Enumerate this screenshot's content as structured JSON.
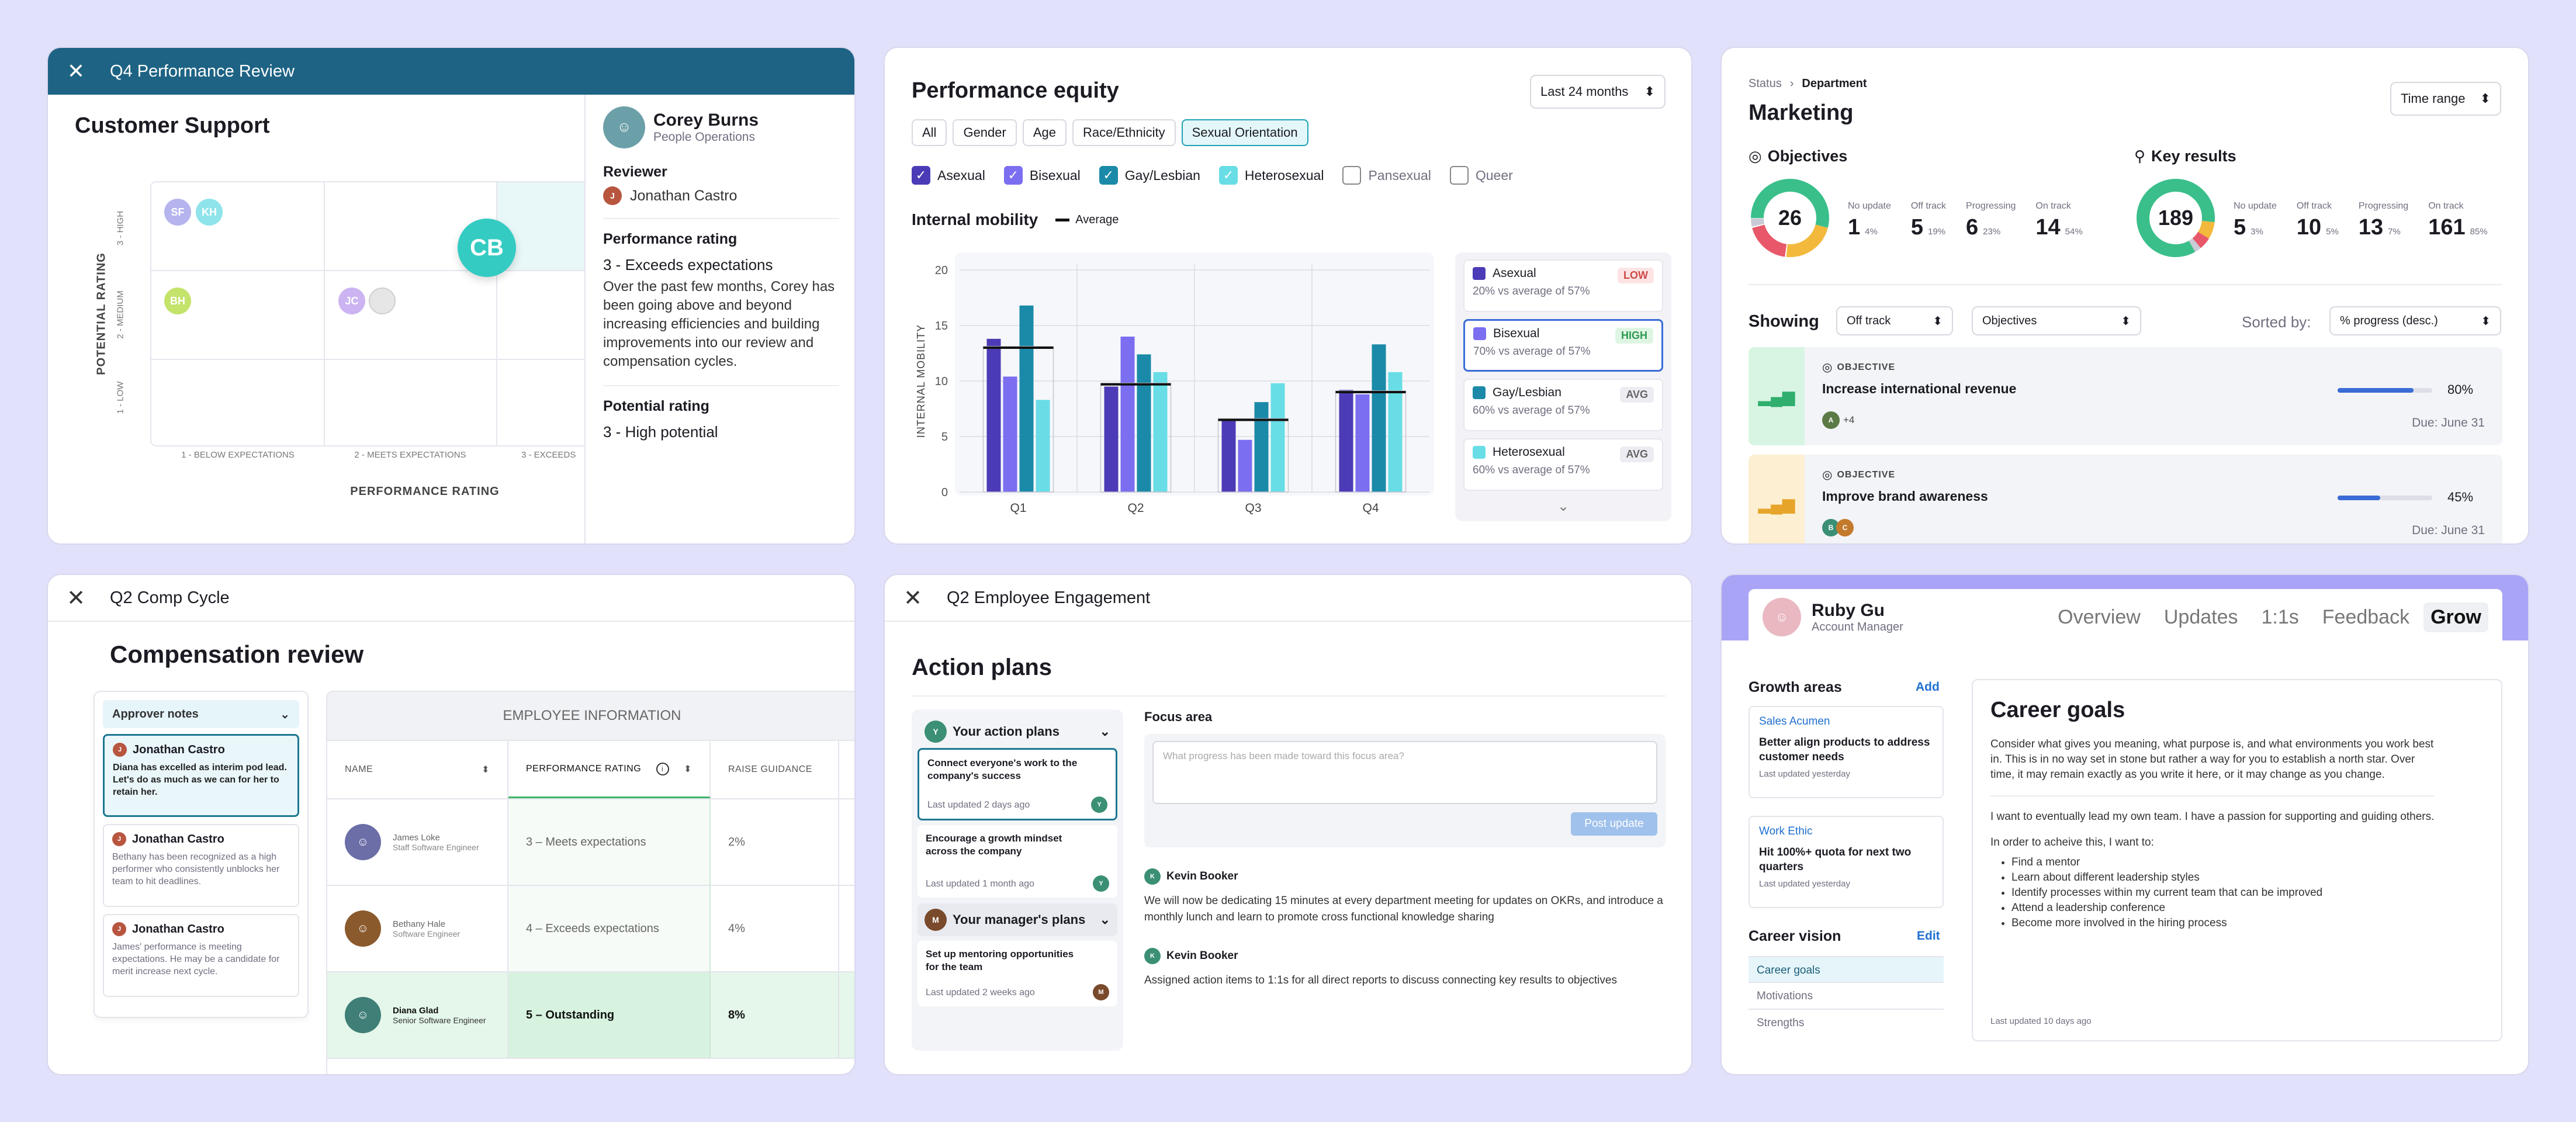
{
  "perf_review": {
    "title": "Q4 Performance Review",
    "dept": "Customer Support",
    "y_axis": "POTENTIAL RATING",
    "x_axis": "PERFORMANCE RATING",
    "y_ticks": [
      "3 - HIGH",
      "2 - MEDIUM",
      "1 - LOW"
    ],
    "x_ticks": [
      "1 - BELOW EXPECTATIONS",
      "2 - MEETS EXPECTATIONS",
      "3 - EXCEEDS"
    ],
    "bubbles": [
      "SF",
      "KH",
      "BH",
      "JC",
      "CB"
    ],
    "person": {
      "name": "Corey Burns",
      "role": "People Operations"
    },
    "reviewer_label": "Reviewer",
    "reviewer_name": "Jonathan Castro",
    "perf_label": "Performance rating",
    "perf_value": "3 - Exceeds expectations",
    "perf_text": "Over the past few months, Corey has been going above and beyond increasing efficiencies and building improvements into our review and compensation cycles.",
    "pot_label": "Potential rating",
    "pot_value": "3 - High potential"
  },
  "equity": {
    "title": "Performance equity",
    "range": "Last 24 months",
    "filters": [
      "All",
      "Gender",
      "Age",
      "Race/Ethnicity",
      "Sexual Orientation"
    ],
    "checks": [
      "Asexual",
      "Bisexual",
      "Gay/Lesbian",
      "Heterosexual",
      "Pansexual",
      "Queer"
    ],
    "check_colors": [
      "#4b3bb6",
      "#7b6ef0",
      "#1b8aa8",
      "#68dde6"
    ],
    "section": "Internal mobility",
    "avg_label": "Average",
    "legend": [
      {
        "name": "Asexual",
        "sub": "20% vs average of 57%",
        "tag": "LOW"
      },
      {
        "name": "Bisexual",
        "sub": "70% vs average of 57%",
        "tag": "HIGH"
      },
      {
        "name": "Gay/Lesbian",
        "sub": "60% vs average of 57%",
        "tag": "AVG"
      },
      {
        "name": "Heterosexual",
        "sub": "60% vs average of 57%",
        "tag": "AVG"
      }
    ]
  },
  "chart_data": {
    "type": "bar",
    "categories": [
      "Q1",
      "Q2",
      "Q3",
      "Q4"
    ],
    "series": [
      {
        "name": "Asexual",
        "values": [
          13.8,
          9.5,
          6.6,
          9.2
        ]
      },
      {
        "name": "Bisexual",
        "values": [
          10.4,
          14.0,
          4.7,
          8.8
        ]
      },
      {
        "name": "Gay/Lesbian",
        "values": [
          16.8,
          12.4,
          8.1,
          13.3
        ]
      },
      {
        "name": "Heterosexual",
        "values": [
          8.3,
          10.8,
          9.8,
          10.8
        ]
      }
    ],
    "averages": [
      13.0,
      9.7,
      6.5,
      9.0
    ],
    "ylabel": "INTERNAL MOBILITY",
    "ylim": [
      0,
      20
    ],
    "yticks": [
      0,
      5,
      10,
      15,
      20
    ],
    "colors": [
      "#4b3bb6",
      "#7b6ef0",
      "#1b8aa8",
      "#68dde6"
    ]
  },
  "okr": {
    "crumb1": "Status",
    "crumb2": "Department",
    "title": "Marketing",
    "range": "Time range",
    "obj_title": "Objectives",
    "obj_total": "26",
    "kr_title": "Key results",
    "kr_total": "189",
    "obj_stats": [
      {
        "label": "No update",
        "num": "1",
        "pct": "4%"
      },
      {
        "label": "Off track",
        "num": "5",
        "pct": "19%"
      },
      {
        "label": "Progressing",
        "num": "6",
        "pct": "23%"
      },
      {
        "label": "On track",
        "num": "14",
        "pct": "54%"
      }
    ],
    "kr_stats": [
      {
        "label": "No update",
        "num": "5",
        "pct": "3%"
      },
      {
        "label": "Off track",
        "num": "10",
        "pct": "5%"
      },
      {
        "label": "Progressing",
        "num": "13",
        "pct": "7%"
      },
      {
        "label": "On track",
        "num": "161",
        "pct": "85%"
      }
    ],
    "showing": "Showing",
    "filter1": "Off track",
    "filter2": "Objectives",
    "sorted": "Sorted by:",
    "sort_value": "% progress (desc.)",
    "items": [
      {
        "kind": "OBJECTIVE",
        "title": "Increase international revenue",
        "pct": "80%",
        "due": "Due:  June 31",
        "extra": "+4",
        "progress": 0.8
      },
      {
        "kind": "OBJECTIVE",
        "title": "Improve brand awareness",
        "pct": "45%",
        "due": "Due:  June 31",
        "extra": "",
        "progress": 0.45
      }
    ]
  },
  "comp": {
    "cycle": "Q2 Comp Cycle",
    "title": "Compensation review",
    "notes_label": "Approver notes",
    "notes": [
      {
        "name": "Jonathan Castro",
        "text": "Diana has excelled as interim pod lead. Let's do as much as we can for her to retain her."
      },
      {
        "name": "Jonathan Castro",
        "text": "Bethany has been recognized as a high performer who consistently unblocks her team to hit deadlines."
      },
      {
        "name": "Jonathan Castro",
        "text": "James' performance is meeting expectations. He may be a candidate for merit increase next cycle."
      }
    ],
    "section": "EMPLOYEE INFORMATION",
    "col_name": "NAME",
    "col_perf": "PERFORMANCE RATING",
    "col_raise": "RAISE GUIDANCE",
    "rows": [
      {
        "name": "James Loke",
        "role": "Staff Software Engineer",
        "perf": "3 – Meets expectations",
        "raise": "2%"
      },
      {
        "name": "Bethany Hale",
        "role": "Software Engineer",
        "perf": "4 – Exceeds expectations",
        "raise": "4%"
      },
      {
        "name": "Diana Glad",
        "role": "Senior Software Engineer",
        "perf": "5 – Outstanding",
        "raise": "8%"
      }
    ]
  },
  "engage": {
    "cycle": "Q2 Employee Engagement",
    "title": "Action plans",
    "your_plans": "Your action plans",
    "plans": [
      {
        "text": "Connect everyone's work to the company's success",
        "updated": "Last updated 2 days ago"
      },
      {
        "text": "Encourage a growth mindset across the company",
        "updated": "Last updated 1 month ago"
      }
    ],
    "manager_plans": "Your manager's plans",
    "mplans": [
      {
        "text": "Set up mentoring opportunities for the team",
        "updated": "Last updated 2 weeks ago"
      }
    ],
    "focus": "Focus area",
    "placeholder": "What progress has been made toward this focus area?",
    "post": "Post update",
    "updates": [
      {
        "author": "Kevin Booker",
        "text": "We will now be dedicating 15 minutes at every department meeting for updates on OKRs, and introduce a monthly lunch and learn to promote cross functional knowledge sharing"
      },
      {
        "author": "Kevin Booker",
        "text": "Assigned action items to 1:1s for all direct reports to discuss connecting key results to objectives"
      }
    ]
  },
  "grow": {
    "name": "Ruby Gu",
    "role": "Account Manager",
    "tabs": [
      "Overview",
      "Updates",
      "1:1s",
      "Feedback",
      "Grow"
    ],
    "areas_label": "Growth areas",
    "add": "Add",
    "areas": [
      {
        "tag": "Sales Acumen",
        "text": "Better align products to address customer needs",
        "updated": "Last updated yesterday"
      },
      {
        "tag": "Work Ethic",
        "text": "Hit 100%+ quota for next two quarters",
        "updated": "Last updated yesterday"
      }
    ],
    "vision_label": "Career vision",
    "edit": "Edit",
    "vision_items": [
      "Career goals",
      "Motivations",
      "Strengths"
    ],
    "goals_title": "Career goals",
    "goals_p1": "Consider what gives you meaning, what purpose is, and what environments you work best in. This is in no way set in stone but rather a way for you to establish a north star. Over time, it may remain exactly as you write it here, or it may change as you change.",
    "goals_p2": "I want to eventually lead my own team. I have a passion for supporting and guiding others.",
    "goals_p3": "In order to acheive this, I want to:",
    "bullets": [
      "Find a mentor",
      "Learn about different leadership styles",
      "Identify processes within my current team that can be improved",
      "Attend a leadership conference",
      "Become more involved in the hiring process"
    ],
    "goals_updated": "Last updated 10 days ago"
  }
}
